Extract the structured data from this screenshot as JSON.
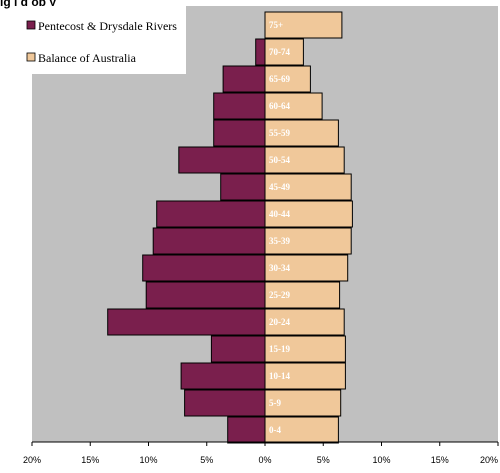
{
  "chart_data": {
    "type": "bar",
    "orientation": "horizontal",
    "title": "ig i g op y",
    "categories": [
      "0-4",
      "5-9",
      "10-14",
      "15-19",
      "20-24",
      "25-29",
      "30-34",
      "35-39",
      "40-44",
      "45-49",
      "50-54",
      "55-59",
      "60-64",
      "65-69",
      "70-74",
      "75+"
    ],
    "series": [
      {
        "name": "Pentecost & Drysdale Rivers",
        "side": "left",
        "color": "#7a1f4d",
        "values": [
          3.2,
          6.9,
          7.2,
          4.6,
          13.5,
          10.2,
          10.5,
          9.6,
          9.3,
          3.8,
          7.4,
          4.4,
          4.4,
          3.6,
          0.8,
          0
        ]
      },
      {
        "name": "Balance of Australia",
        "side": "right",
        "color": "#f0c89a",
        "values": [
          6.3,
          6.5,
          6.9,
          6.9,
          6.8,
          6.4,
          7.1,
          7.4,
          7.5,
          7.4,
          6.8,
          6.3,
          4.9,
          3.9,
          3.3,
          6.6
        ]
      }
    ],
    "xlim": [
      -20,
      20
    ],
    "xticks": [
      "20%",
      "15%",
      "10%",
      "5%",
      "0%",
      "5%",
      "10%",
      "15%",
      "20%"
    ],
    "legend_position": "top-left",
    "grid": false,
    "plot_background": "#c0c0c0"
  }
}
